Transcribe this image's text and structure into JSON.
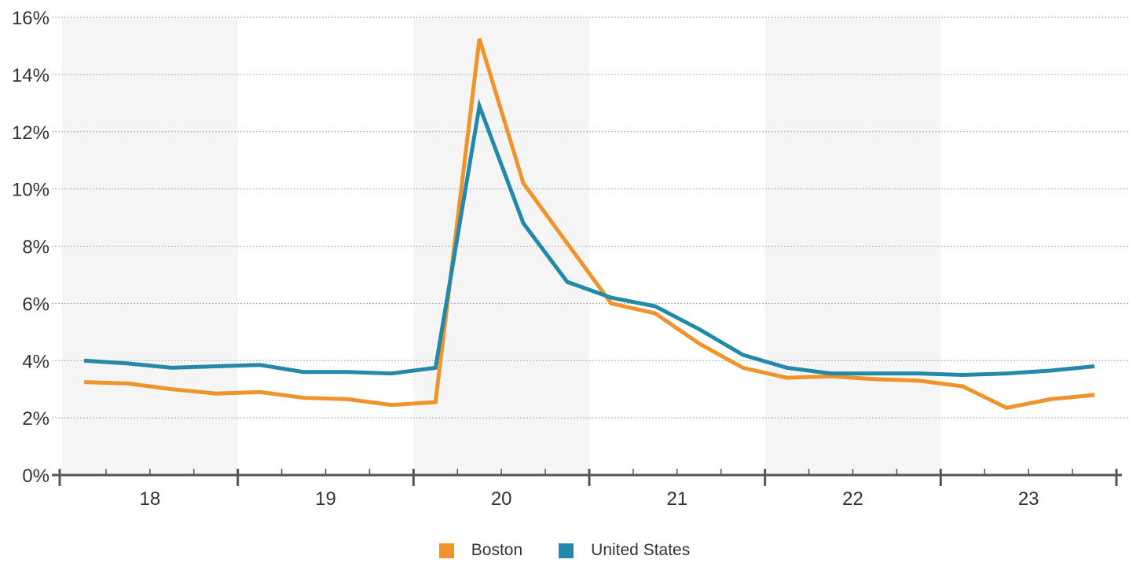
{
  "chart_data": {
    "type": "line",
    "title": "",
    "xlabel": "",
    "ylabel": "",
    "y_tick_labels": [
      "0%",
      "2%",
      "4%",
      "6%",
      "8%",
      "10%",
      "12%",
      "14%",
      "16%"
    ],
    "ylim": [
      0,
      16
    ],
    "y_unit": "%",
    "grid": "horizontal dotted",
    "x_tick_labels": [
      "18",
      "19",
      "20",
      "21",
      "22",
      "23"
    ],
    "x_years": [
      2018,
      2019,
      2020,
      2021,
      2022,
      2023
    ],
    "points_per_year": 4,
    "x": [
      "2018-Q1",
      "2018-Q2",
      "2018-Q3",
      "2018-Q4",
      "2019-Q1",
      "2019-Q2",
      "2019-Q3",
      "2019-Q4",
      "2020-Q1",
      "2020-Q2",
      "2020-Q3",
      "2020-Q4",
      "2021-Q1",
      "2021-Q2",
      "2021-Q3",
      "2021-Q4",
      "2022-Q1",
      "2022-Q2",
      "2022-Q3",
      "2022-Q4",
      "2023-Q1",
      "2023-Q2",
      "2023-Q3",
      "2023-Q4"
    ],
    "legend_position": "bottom-center",
    "series": [
      {
        "name": "Boston",
        "color": "#F0932B",
        "values": [
          3.25,
          3.2,
          3.0,
          2.85,
          2.9,
          2.7,
          2.65,
          2.45,
          2.55,
          15.25,
          10.2,
          8.1,
          6.0,
          5.65,
          4.6,
          3.75,
          3.4,
          3.45,
          3.35,
          3.3,
          3.1,
          2.35,
          2.65,
          2.8
        ]
      },
      {
        "name": "United States",
        "color": "#2389A8",
        "values": [
          4.0,
          3.9,
          3.75,
          3.8,
          3.85,
          3.6,
          3.6,
          3.55,
          3.75,
          12.9,
          8.8,
          6.75,
          6.2,
          5.9,
          5.1,
          4.2,
          3.75,
          3.55,
          3.55,
          3.55,
          3.5,
          3.55,
          3.65,
          3.8
        ]
      }
    ]
  }
}
